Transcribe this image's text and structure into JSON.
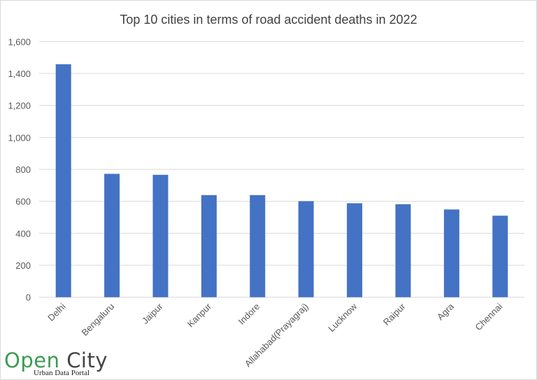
{
  "chart_data": {
    "type": "bar",
    "title": "Top 10 cities in terms of road accident deaths in 2022",
    "xlabel": "",
    "ylabel": "",
    "categories": [
      "Delhi",
      "Bengaluru",
      "Jaipur",
      "Kanpur",
      "Indore",
      "Allahabad(Prayagraj)",
      "Lucknow",
      "Raipur",
      "Agra",
      "Chennai"
    ],
    "values": [
      1458,
      772,
      766,
      639,
      639,
      601,
      588,
      582,
      549,
      510
    ],
    "ylim": [
      0,
      1600
    ],
    "yticks": [
      0,
      200,
      400,
      600,
      800,
      1000,
      1200,
      1400,
      1600
    ],
    "ytick_labels": [
      "0",
      "200",
      "400",
      "600",
      "800",
      "1,000",
      "1,200",
      "1,400",
      "1,600"
    ],
    "grid": true,
    "bar_color": "#4472c4",
    "grid_color": "#d9d9d9"
  },
  "logo": {
    "open": "Open",
    "city": "City",
    "subtitle": "Urban Data Portal"
  }
}
